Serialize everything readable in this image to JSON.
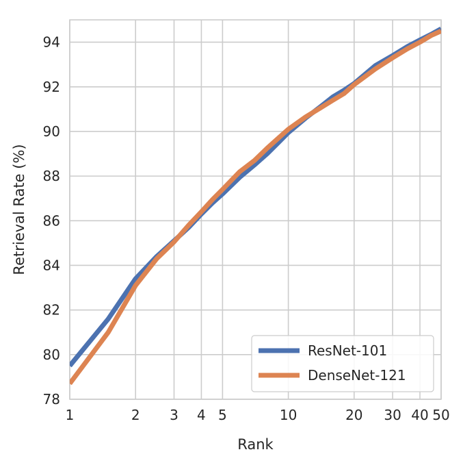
{
  "chart_data": {
    "type": "line",
    "title": "",
    "xlabel": "Rank",
    "ylabel": "Retrieval Rate (%)",
    "x_scale": "log",
    "xlim": [
      1,
      50
    ],
    "ylim": [
      78,
      95
    ],
    "x_ticks": [
      1,
      2,
      3,
      4,
      5,
      10,
      20,
      30,
      40,
      50
    ],
    "x_tick_labels": [
      "1",
      "2",
      "3",
      "4",
      "5",
      "10",
      "20",
      "30",
      "40",
      "50"
    ],
    "y_ticks": [
      78,
      80,
      82,
      84,
      86,
      88,
      90,
      92,
      94
    ],
    "y_tick_labels": [
      "78",
      "80",
      "82",
      "84",
      "86",
      "88",
      "90",
      "92",
      "94"
    ],
    "grid": true,
    "legend_position": "bottom-right",
    "series": [
      {
        "name": "ResNet-101",
        "color": "#4c72b0",
        "x": [
          1,
          1.5,
          2,
          2.5,
          3,
          3.5,
          4,
          4.5,
          5,
          6,
          7,
          8,
          9,
          10,
          12,
          14,
          16,
          18,
          20,
          25,
          30,
          35,
          40,
          45,
          50
        ],
        "y": [
          79.5,
          81.6,
          83.4,
          84.4,
          85.1,
          85.7,
          86.3,
          86.8,
          87.2,
          87.95,
          88.5,
          89.0,
          89.5,
          89.95,
          90.6,
          91.1,
          91.55,
          91.85,
          92.15,
          92.95,
          93.4,
          93.8,
          94.1,
          94.35,
          94.6
        ]
      },
      {
        "name": "DenseNet-121",
        "color": "#dd8452",
        "x": [
          1,
          1.5,
          2,
          2.5,
          3,
          3.5,
          4,
          4.5,
          5,
          6,
          7,
          8,
          9,
          10,
          12,
          14,
          16,
          18,
          20,
          25,
          30,
          35,
          40,
          45,
          50
        ],
        "y": [
          78.7,
          81.0,
          83.1,
          84.3,
          85.05,
          85.8,
          86.4,
          86.95,
          87.4,
          88.2,
          88.7,
          89.25,
          89.7,
          90.1,
          90.65,
          91.05,
          91.4,
          91.7,
          92.1,
          92.8,
          93.3,
          93.7,
          94.0,
          94.3,
          94.5
        ]
      }
    ]
  }
}
